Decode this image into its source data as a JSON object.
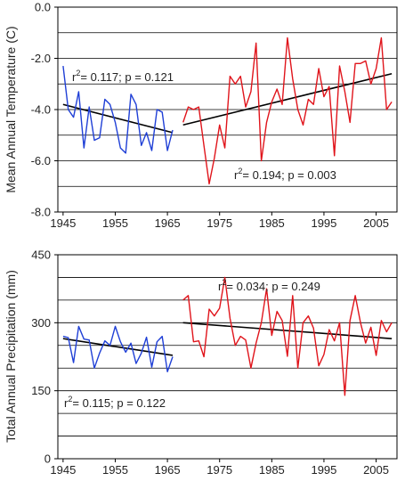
{
  "chart_data": [
    {
      "type": "line",
      "title": "",
      "xlabel": "",
      "ylabel": "Mean Annual Temperature (C)",
      "xlim": [
        1944,
        2009
      ],
      "ylim": [
        -8.0,
        0.0
      ],
      "xticks": [
        1945,
        1955,
        1965,
        1975,
        1985,
        1995,
        2005
      ],
      "xtick_labels": [
        "1945",
        "1955",
        "1965",
        "1975",
        "1985",
        "1995",
        "2005"
      ],
      "yticks": [
        -8.0,
        -6.0,
        -4.0,
        -2.0,
        0.0
      ],
      "ytick_labels": [
        "-8.0",
        "-6.0",
        "-4.0",
        "-2.0",
        "0.0"
      ],
      "grid": "horizontal every 1.0",
      "series": [
        {
          "color": "#1f3fd6",
          "x": [
            1945,
            1946,
            1947,
            1948,
            1949,
            1950,
            1951,
            1952,
            1953,
            1954,
            1955,
            1956,
            1957,
            1958,
            1959,
            1960,
            1961,
            1962,
            1963,
            1964,
            1965,
            1966
          ],
          "y": [
            -2.3,
            -4.0,
            -4.3,
            -3.3,
            -5.5,
            -3.9,
            -5.2,
            -5.1,
            -3.6,
            -3.8,
            -4.5,
            -5.5,
            -5.7,
            -3.4,
            -3.8,
            -5.4,
            -4.9,
            -5.6,
            -4.0,
            -4.1,
            -5.6,
            -4.8
          ]
        },
        {
          "color": "#e0141b",
          "x": [
            1968,
            1969,
            1970,
            1971,
            1972,
            1973,
            1974,
            1975,
            1976,
            1977,
            1978,
            1979,
            1980,
            1981,
            1982,
            1983,
            1984,
            1985,
            1986,
            1987,
            1988,
            1989,
            1990,
            1991,
            1992,
            1993,
            1994,
            1995,
            1996,
            1997,
            1998,
            1999,
            2000,
            2001,
            2002,
            2003,
            2004,
            2005,
            2006,
            2007,
            2008
          ],
          "y": [
            -4.5,
            -3.9,
            -4.0,
            -3.9,
            -5.4,
            -6.9,
            -5.9,
            -4.6,
            -5.5,
            -2.7,
            -3.0,
            -2.7,
            -3.9,
            -3.3,
            -1.4,
            -6.0,
            -4.5,
            -3.7,
            -3.2,
            -3.8,
            -1.2,
            -2.8,
            -4.0,
            -4.6,
            -3.6,
            -3.8,
            -2.4,
            -3.5,
            -3.1,
            -5.8,
            -2.3,
            -3.3,
            -4.5,
            -2.2,
            -2.2,
            -2.1,
            -3.0,
            -2.4,
            -1.2,
            -4.0,
            -3.7
          ]
        }
      ],
      "trend_lines": [
        {
          "color": "#000000",
          "x": [
            1945,
            1966
          ],
          "y": [
            -3.8,
            -4.9
          ]
        },
        {
          "color": "#000000",
          "x": [
            1968,
            2008
          ],
          "y": [
            -4.6,
            -2.6
          ]
        }
      ],
      "annotations": [
        {
          "r2_label": "r",
          "sup": "2",
          "text": "= 0.117; p = 0.121"
        },
        {
          "r2_label": "r",
          "sup": "2",
          "text": "= 0.194; p = 0.003"
        }
      ]
    },
    {
      "type": "line",
      "title": "",
      "xlabel": "",
      "ylabel": "Total Annual Precipitation (mm)",
      "xlim": [
        1944,
        2009
      ],
      "ylim": [
        0,
        450
      ],
      "xticks": [
        1945,
        1955,
        1965,
        1975,
        1985,
        1995,
        2005
      ],
      "xtick_labels": [
        "1945",
        "1955",
        "1965",
        "1975",
        "1985",
        "1995",
        "2005"
      ],
      "yticks": [
        0,
        150,
        300,
        450
      ],
      "ytick_labels": [
        "0",
        "150",
        "300",
        "450"
      ],
      "grid": "horizontal every 50",
      "series": [
        {
          "color": "#1f3fd6",
          "x": [
            1945,
            1946,
            1947,
            1948,
            1949,
            1950,
            1951,
            1952,
            1953,
            1954,
            1955,
            1956,
            1957,
            1958,
            1959,
            1960,
            1961,
            1962,
            1963,
            1964,
            1965,
            1966
          ],
          "y": [
            270,
            267,
            212,
            292,
            264,
            262,
            200,
            233,
            260,
            250,
            292,
            258,
            235,
            255,
            210,
            233,
            268,
            202,
            258,
            270,
            192,
            225
          ]
        },
        {
          "color": "#e0141b",
          "x": [
            1968,
            1969,
            1970,
            1971,
            1972,
            1973,
            1974,
            1975,
            1976,
            1977,
            1978,
            1979,
            1980,
            1981,
            1982,
            1983,
            1984,
            1985,
            1986,
            1987,
            1988,
            1989,
            1990,
            1991,
            1992,
            1993,
            1994,
            1995,
            1996,
            1997,
            1998,
            1999,
            2000,
            2001,
            2002,
            2003,
            2004,
            2005,
            2006,
            2007,
            2008
          ],
          "y": [
            350,
            360,
            258,
            260,
            225,
            330,
            315,
            332,
            400,
            310,
            250,
            270,
            262,
            200,
            255,
            300,
            375,
            272,
            325,
            305,
            226,
            360,
            200,
            300,
            315,
            288,
            205,
            230,
            285,
            260,
            300,
            140,
            305,
            360,
            300,
            255,
            290,
            228,
            305,
            280,
            300
          ]
        }
      ],
      "trend_lines": [
        {
          "color": "#000000",
          "x": [
            1945,
            1966
          ],
          "y": [
            265,
            228
          ]
        },
        {
          "color": "#000000",
          "x": [
            1968,
            2008
          ],
          "y": [
            300,
            265
          ]
        }
      ],
      "annotations": [
        {
          "r2_label": "r",
          "sup": "2",
          "text": "= 0.034; p = 0.249"
        },
        {
          "r2_label": "r",
          "sup": "2",
          "text": "= 0.115; p = 0.122"
        }
      ]
    }
  ]
}
